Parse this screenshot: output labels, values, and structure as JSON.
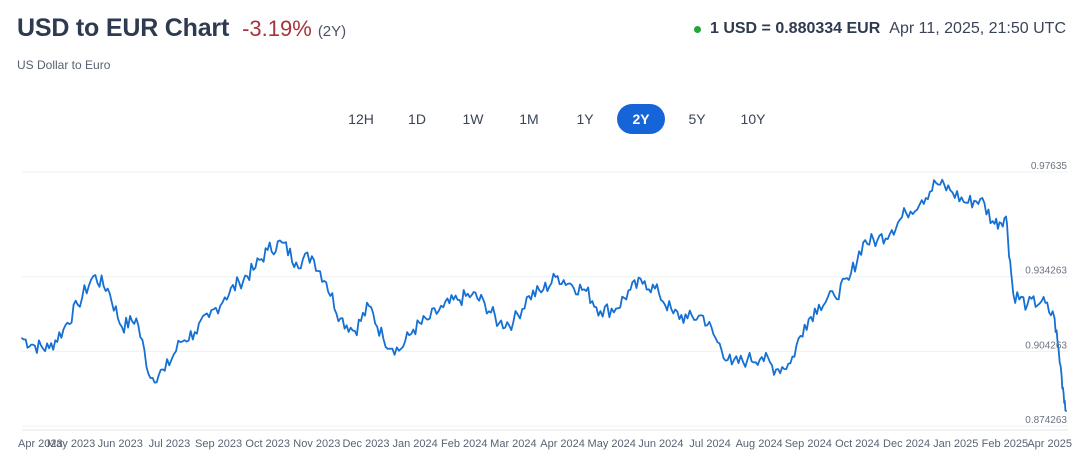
{
  "header": {
    "title": "USD to EUR Chart",
    "change": "-3.19%",
    "period": "(2Y)",
    "subtitle": "US Dollar to Euro"
  },
  "rate_info": {
    "rate": "1 USD = 0.880334 EUR",
    "timestamp": "Apr 11, 2025, 21:50 UTC"
  },
  "tabs": [
    {
      "label": "12H",
      "active": false
    },
    {
      "label": "1D",
      "active": false
    },
    {
      "label": "1W",
      "active": false
    },
    {
      "label": "1M",
      "active": false
    },
    {
      "label": "1Y",
      "active": false
    },
    {
      "label": "2Y",
      "active": true
    },
    {
      "label": "5Y",
      "active": false
    },
    {
      "label": "10Y",
      "active": false
    }
  ],
  "colors": {
    "line": "#1670d4",
    "active_tab": "#1565d8",
    "negative": "#a8323e",
    "live": "#22a63a"
  },
  "chart_data": {
    "type": "line",
    "series": [
      {
        "x": [
          "2023-04-11",
          "2023-04-20",
          "2023-04-30",
          "2023-05-10",
          "2023-05-20",
          "2023-05-31",
          "2023-06-10",
          "2023-06-20",
          "2023-06-30",
          "2023-07-10",
          "2023-07-20",
          "2023-07-31",
          "2023-08-10",
          "2023-08-20",
          "2023-08-31",
          "2023-09-10",
          "2023-09-20",
          "2023-09-30",
          "2023-10-10",
          "2023-10-20",
          "2023-10-31",
          "2023-11-10",
          "2023-11-20",
          "2023-11-30",
          "2023-12-10",
          "2023-12-20",
          "2023-12-31",
          "2024-01-10",
          "2024-01-20",
          "2024-01-31",
          "2024-02-10",
          "2024-02-20",
          "2024-02-29",
          "2024-03-10",
          "2024-03-20",
          "2024-03-31",
          "2024-04-10",
          "2024-04-20",
          "2024-04-30",
          "2024-05-10",
          "2024-05-20",
          "2024-05-31",
          "2024-06-10",
          "2024-06-20",
          "2024-06-30",
          "2024-07-10",
          "2024-07-20",
          "2024-07-31",
          "2024-08-10",
          "2024-08-20",
          "2024-08-31",
          "2024-09-10",
          "2024-09-20",
          "2024-09-30",
          "2024-10-10",
          "2024-10-20",
          "2024-10-31",
          "2024-11-10",
          "2024-11-20",
          "2024-11-30",
          "2024-12-10",
          "2024-12-20",
          "2024-12-31",
          "2025-01-10",
          "2025-01-20",
          "2025-01-31",
          "2025-02-10",
          "2025-02-20",
          "2025-02-28",
          "2025-03-05",
          "2025-03-15",
          "2025-03-25",
          "2025-04-03",
          "2025-04-08",
          "2025-04-11"
        ],
        "y": [
          0.9095,
          0.9065,
          0.9055,
          0.913,
          0.923,
          0.9345,
          0.9295,
          0.914,
          0.9175,
          0.8935,
          0.8965,
          0.908,
          0.912,
          0.918,
          0.926,
          0.932,
          0.937,
          0.945,
          0.948,
          0.94,
          0.9425,
          0.932,
          0.9175,
          0.9125,
          0.9225,
          0.9095,
          0.9045,
          0.913,
          0.917,
          0.922,
          0.925,
          0.927,
          0.9235,
          0.9155,
          0.916,
          0.9265,
          0.929,
          0.9345,
          0.931,
          0.9285,
          0.9205,
          0.9215,
          0.929,
          0.9325,
          0.9275,
          0.9195,
          0.9175,
          0.9185,
          0.908,
          0.899,
          0.901,
          0.902,
          0.897,
          0.8995,
          0.915,
          0.923,
          0.9265,
          0.933,
          0.948,
          0.949,
          0.953,
          0.96,
          0.965,
          0.972,
          0.969,
          0.964,
          0.9655,
          0.9555,
          0.9585,
          0.9275,
          0.923,
          0.9245,
          0.9175,
          0.894,
          0.8803
        ]
      }
    ],
    "y_ticks": [
      "0.97635",
      "0.934263",
      "0.904263",
      "0.874263"
    ],
    "x_ticks": [
      "Apr 2023",
      "May 2023",
      "Jun 2023",
      "Jul 2023",
      "Sep 2023",
      "Oct 2023",
      "Nov 2023",
      "Dec 2023",
      "Jan 2024",
      "Feb 2024",
      "Mar 2024",
      "Apr 2024",
      "May 2024",
      "Jun 2024",
      "Jul 2024",
      "Aug 2024",
      "Sep 2024",
      "Oct 2024",
      "Dec 2024",
      "Jan 2025",
      "Feb 2025",
      "Apr 2025"
    ],
    "ylim": [
      0.874263,
      0.97635
    ],
    "xlim": [
      "2023-04-11",
      "2025-04-11"
    ],
    "grid": "horizontal"
  }
}
